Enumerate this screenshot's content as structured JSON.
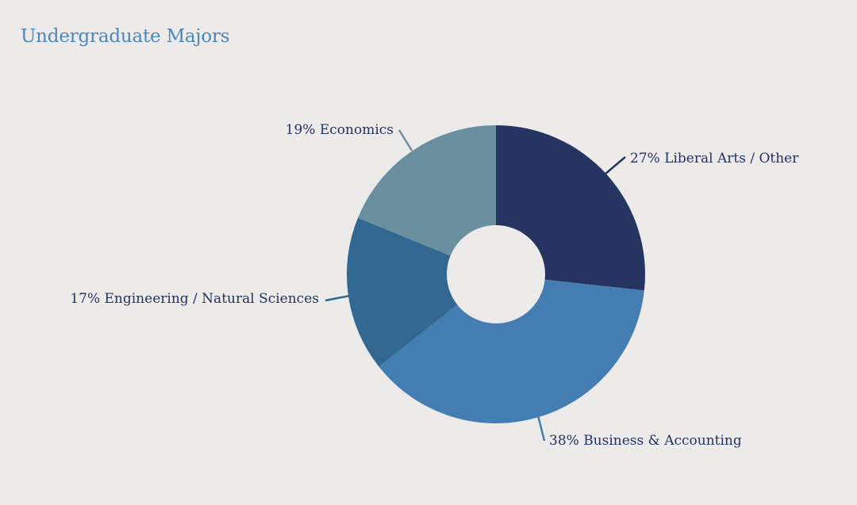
{
  "title": "Undergraduate Majors",
  "colors": {
    "background": "#edebea",
    "title": "#4a86c0",
    "label_text": "#243262",
    "hole": "#ffffff"
  },
  "chart_data": {
    "type": "pie",
    "style": "donut",
    "title": "Undergraduate Majors",
    "start_angle_deg": 0,
    "direction": "clockwise",
    "slices": [
      {
        "label": "Liberal Arts / Other",
        "value": 27,
        "display": "27% Liberal Arts / Other",
        "color": "#263461"
      },
      {
        "label": "Business & Accounting",
        "value": 38,
        "display": "38% Business & Accounting",
        "color": "#437db1"
      },
      {
        "label": "Engineering / Natural Sciences",
        "value": 17,
        "display": "17% Engineering / Natural Sciences",
        "color": "#336892"
      },
      {
        "label": "Economics",
        "value": 19,
        "display": "19% Economics",
        "color": "#6a8f9e"
      }
    ]
  }
}
